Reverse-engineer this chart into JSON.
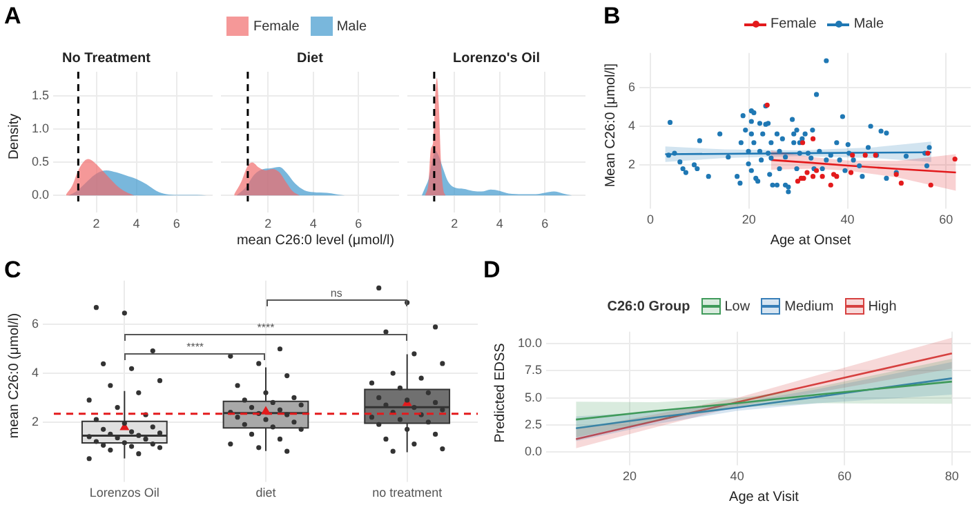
{
  "chart_data": [
    {
      "type": "area",
      "title": "No Treatment",
      "ylabel": "Density",
      "annotations": [
        "A"
      ],
      "legend": "top",
      "grid": true,
      "xlim": [
        0.4,
        7.8
      ],
      "xticks": [
        2,
        4,
        6
      ],
      "ylim": [
        -0.09,
        1.87
      ],
      "yticks": [
        {
          "value": 0,
          "label": "0.0"
        },
        {
          "value": 0.5,
          "label": "0.5"
        },
        {
          "value": 1,
          "label": "1.0"
        },
        {
          "value": 1.5,
          "label": "1.5"
        }
      ],
      "ref_lines": [
        {
          "axis": "x",
          "value": 1.1,
          "color": "#000000",
          "line_style": "dashed"
        }
      ],
      "series": [
        {
          "name": "Female",
          "color": "#f06a6a",
          "x": [
            0.5,
            0.8,
            1.1,
            1.4,
            1.6,
            1.9,
            2.3,
            2.7,
            3.1,
            3.5,
            3.9
          ],
          "values": [
            0.02,
            0.15,
            0.38,
            0.52,
            0.55,
            0.5,
            0.38,
            0.25,
            0.13,
            0.05,
            0
          ]
        },
        {
          "name": "Male",
          "color": "#3d97cc",
          "x": [
            0.6,
            1,
            1.5,
            2,
            2.5,
            3,
            3.5,
            4,
            4.5,
            5,
            5.5,
            6,
            7,
            7.5
          ],
          "values": [
            0,
            0.06,
            0.2,
            0.33,
            0.38,
            0.35,
            0.3,
            0.25,
            0.17,
            0.07,
            0.02,
            0.01,
            0.01,
            0
          ]
        }
      ]
    },
    {
      "type": "area",
      "title": "Diet",
      "xlabel": "mean C26:0 level (μmol/l)",
      "tick_labels": "x",
      "grid": true,
      "xlim": [
        0.4,
        7.8
      ],
      "xticks": [
        2,
        4,
        6
      ],
      "ylim": [
        -0.09,
        1.87
      ],
      "yticks": [
        0,
        0.5,
        1,
        1.5
      ],
      "ref_lines": [
        {
          "axis": "x",
          "value": 1.1,
          "color": "#000000",
          "line_style": "dashed"
        }
      ],
      "series": [
        {
          "color": "#f06a6a",
          "x": [
            0.5,
            0.8,
            1.1,
            1.3,
            1.6,
            1.9,
            2.2,
            2.5,
            2.8,
            3.1,
            3.4
          ],
          "values": [
            0.02,
            0.2,
            0.45,
            0.5,
            0.42,
            0.38,
            0.4,
            0.35,
            0.2,
            0.06,
            0
          ]
        },
        {
          "color": "#3d97cc",
          "x": [
            0.6,
            1,
            1.4,
            1.8,
            2.1,
            2.5,
            2.8,
            3.2,
            3.6,
            4,
            4.6,
            5,
            5.4
          ],
          "values": [
            0,
            0.12,
            0.32,
            0.4,
            0.41,
            0.43,
            0.35,
            0.18,
            0.08,
            0.05,
            0.04,
            0.02,
            0
          ]
        }
      ]
    },
    {
      "type": "area",
      "title": "Lorenzo's Oil",
      "tick_labels": "x",
      "grid": true,
      "xlim": [
        0.4,
        7.8
      ],
      "xticks": [
        2,
        4,
        6
      ],
      "ylim": [
        -0.09,
        1.87
      ],
      "yticks": [
        0,
        0.5,
        1,
        1.5
      ],
      "ref_lines": [
        {
          "axis": "x",
          "value": 1.1,
          "color": "#000000",
          "line_style": "dashed"
        }
      ],
      "series": [
        {
          "color": "#f06a6a",
          "x": [
            0.7,
            0.85,
            0.95,
            1.05,
            1.15,
            1.22,
            1.3,
            1.4,
            1.5,
            1.6
          ],
          "values": [
            0,
            0.2,
            0.7,
            0.8,
            1.5,
            1.78,
            1.4,
            0.5,
            0.1,
            0
          ]
        },
        {
          "color": "#3d97cc",
          "x": [
            0.55,
            0.7,
            0.85,
            1,
            1.15,
            1.3,
            1.5,
            1.7,
            2,
            2.4,
            2.8,
            3.2,
            3.6,
            4,
            4.4,
            5,
            5.6,
            6,
            6.4,
            6.8,
            7.2
          ],
          "values": [
            0,
            0.12,
            0.25,
            0.5,
            0.68,
            0.6,
            0.4,
            0.22,
            0.12,
            0.1,
            0.07,
            0.06,
            0.09,
            0.07,
            0.03,
            0.02,
            0.02,
            0.04,
            0.06,
            0.03,
            0
          ]
        }
      ]
    },
    {
      "type": "scatter",
      "xlabel": "Age at Onset",
      "ylabel": "Mean C26:0 [μmol/l]",
      "annotations": [
        "B"
      ],
      "legend": "top",
      "grid": true,
      "xlim": [
        0,
        65
      ],
      "xticks": [
        0,
        20,
        40,
        60
      ],
      "ylim": [
        0.3,
        7.8
      ],
      "yticks": [
        2,
        4,
        6
      ],
      "series": [
        {
          "name": "Female",
          "color": "#e31a1c",
          "x": [
            23.7,
            30.9,
            33,
            29.9,
            30.6,
            31.1,
            31.8,
            33,
            34.9,
            36.6,
            37.2,
            37.8,
            40.7,
            41,
            43.6,
            45.7,
            49.9,
            50.9,
            56.3,
            56.9,
            61.8,
            33.7
          ],
          "values": [
            5.1,
            3.15,
            3.35,
            1.15,
            1.3,
            1.3,
            1.6,
            1.4,
            1.4,
            0.95,
            1.5,
            1.4,
            1.6,
            2.5,
            2.5,
            2.5,
            1.5,
            1.05,
            2.6,
            0.95,
            2.3,
            1.7
          ]
        },
        {
          "name": "Male",
          "color": "#1f78b4",
          "x": [
            4,
            3.7,
            4.9,
            6,
            6.6,
            7.2,
            8.9,
            9.5,
            10,
            11.8,
            14.1,
            15.8,
            17.6,
            18.2,
            18.4,
            18.8,
            19.3,
            19.9,
            19.9,
            20.5,
            20.5,
            20.5,
            20.5,
            21,
            21,
            21.4,
            21.8,
            22.2,
            22.2,
            22.5,
            22.8,
            23.4,
            23.4,
            23.9,
            23.9,
            24.2,
            24.5,
            24.5,
            24.8,
            25.7,
            25.7,
            26.2,
            26.2,
            26.8,
            27.4,
            27.4,
            28,
            28,
            28.8,
            29.1,
            29.1,
            29.7,
            29.7,
            30.3,
            30.3,
            30.8,
            31.4,
            32,
            32.6,
            32.9,
            33.2,
            33.7,
            34.3,
            34.9,
            35.7,
            35.7,
            36.6,
            37.8,
            38.4,
            39,
            39.5,
            40.1,
            40.3,
            41.2,
            42.4,
            43,
            44.2,
            44.7,
            45.9,
            46.8,
            47.9,
            47.9,
            49.9,
            51.9,
            56.1,
            56.6,
            55.7
          ],
          "values": [
            4.2,
            2.5,
            2.6,
            2.15,
            1.8,
            1.6,
            2,
            1.8,
            3.25,
            1.4,
            3.6,
            2.4,
            1.4,
            1.05,
            3.15,
            4.55,
            3.8,
            2.7,
            2.05,
            4.8,
            4.25,
            3.6,
            1.7,
            4.7,
            3.15,
            1.3,
            1.15,
            4.15,
            2.7,
            2.25,
            3.6,
            4.1,
            5.05,
            2.6,
            4.15,
            1.5,
            2.35,
            3.15,
            0.95,
            0.95,
            3.6,
            2.7,
            1.8,
            3.35,
            2.4,
            0.95,
            0.85,
            0.6,
            4.35,
            3.6,
            3.15,
            3.8,
            1.8,
            2.6,
            3.15,
            3.35,
            3.6,
            2.6,
            2.35,
            3.8,
            1.8,
            5.65,
            2.7,
            1.8,
            7.4,
            2.25,
            2.5,
            3.15,
            2.25,
            4.5,
            1.7,
            3.05,
            2.6,
            2.25,
            1.95,
            1.4,
            2.9,
            4,
            2.5,
            3.75,
            3.65,
            1.3,
            1.6,
            2.45,
            1.95,
            2.9,
            2.6
          ]
        },
        {
          "type": "line",
          "color": "#e31a1c",
          "x": [
            24.5,
            33,
            40,
            50,
            62
          ],
          "values": [
            2.25,
            2.1,
            1.96,
            1.79,
            1.6
          ],
          "lower": [
            1.75,
            1.8,
            1.7,
            1.35,
            0.65
          ],
          "upper": [
            2.75,
            2.4,
            2.22,
            2.2,
            2.55
          ]
        },
        {
          "type": "line",
          "color": "#1f78b4",
          "x": [
            3,
            15,
            30,
            45,
            57
          ],
          "values": [
            2.55,
            2.57,
            2.6,
            2.63,
            2.65
          ],
          "lower": [
            2.15,
            2.35,
            2.45,
            2.35,
            2.15
          ],
          "upper": [
            2.95,
            2.8,
            2.75,
            2.9,
            3.2
          ]
        }
      ]
    },
    {
      "type": "box",
      "ylabel": "mean C26:0 (μmol/l)",
      "annotations": [
        "C",
        "****",
        "****",
        "ns"
      ],
      "grid": true,
      "categories": [
        "Lorenzos Oil",
        "diet",
        "no treatment"
      ],
      "colors": [
        "#e0e0e0",
        "#a8a8a8",
        "#707070"
      ],
      "ylim": [
        0,
        7.8
      ],
      "yticks": [
        2,
        4,
        6
      ],
      "boxes": [
        {
          "low": 0.51,
          "q1": 1.14,
          "median": 1.44,
          "q3": 2.03,
          "high": 3.27,
          "mean": 1.81
        },
        {
          "low": 0.81,
          "q1": 1.76,
          "median": 2.37,
          "q3": 2.85,
          "high": 4.24,
          "mean": 2.46
        },
        {
          "low": 0.76,
          "q1": 1.95,
          "median": 2.61,
          "q3": 3.34,
          "high": 4.78,
          "mean": 2.8
        }
      ],
      "ref_lines": [
        {
          "axis": "y",
          "value": 2.34,
          "color": "#e31a1c",
          "line_style": "dashed"
        }
      ],
      "series": [
        {
          "type": "scatter",
          "color": "#333333",
          "x": [
            "Lorenzos Oil",
            "Lorenzos Oil",
            "Lorenzos Oil",
            "Lorenzos Oil",
            "Lorenzos Oil",
            "Lorenzos Oil",
            "Lorenzos Oil",
            "Lorenzos Oil",
            "Lorenzos Oil",
            "Lorenzos Oil",
            "Lorenzos Oil",
            "Lorenzos Oil",
            "Lorenzos Oil",
            "Lorenzos Oil",
            "Lorenzos Oil",
            "Lorenzos Oil",
            "Lorenzos Oil",
            "Lorenzos Oil",
            "Lorenzos Oil",
            "Lorenzos Oil",
            "Lorenzos Oil",
            "Lorenzos Oil",
            "Lorenzos Oil",
            "Lorenzos Oil",
            "Lorenzos Oil",
            "Lorenzos Oil",
            "Lorenzos Oil",
            "Lorenzos Oil",
            "Lorenzos Oil",
            "Lorenzos Oil",
            "Lorenzos Oil",
            "diet",
            "diet",
            "diet",
            "diet",
            "diet",
            "diet",
            "diet",
            "diet",
            "diet",
            "diet",
            "diet",
            "diet",
            "diet",
            "diet",
            "diet",
            "diet",
            "diet",
            "diet",
            "diet",
            "diet",
            "diet",
            "diet",
            "diet",
            "diet",
            "diet",
            "diet",
            "no treatment",
            "no treatment",
            "no treatment",
            "no treatment",
            "no treatment",
            "no treatment",
            "no treatment",
            "no treatment",
            "no treatment",
            "no treatment",
            "no treatment",
            "no treatment",
            "no treatment",
            "no treatment",
            "no treatment",
            "no treatment",
            "no treatment",
            "no treatment",
            "no treatment",
            "no treatment",
            "no treatment",
            "no treatment",
            "no treatment",
            "no treatment",
            "no treatment",
            "no treatment",
            "no treatment",
            "no treatment",
            "no treatment"
          ],
          "values": [
            0.5,
            0.7,
            0.85,
            0.95,
            1,
            1.05,
            1.1,
            1.15,
            1.2,
            1.3,
            1.35,
            1.4,
            1.45,
            1.5,
            1.55,
            1.6,
            1.7,
            1.8,
            1.95,
            2.1,
            2.3,
            2.6,
            2.9,
            3.2,
            3.5,
            3.7,
            4.19,
            4.39,
            4.92,
            6.47,
            6.7,
            0.8,
            0.95,
            1.1,
            1.3,
            1.5,
            1.7,
            1.8,
            1.9,
            2,
            2.1,
            2.2,
            2.3,
            2.35,
            2.4,
            2.5,
            2.6,
            2.7,
            2.8,
            2.9,
            3,
            3.2,
            3.5,
            3.9,
            4.4,
            4.7,
            5,
            0.8,
            0.9,
            1.1,
            1.3,
            1.5,
            1.7,
            1.9,
            2,
            2.1,
            2.2,
            2.3,
            2.4,
            2.5,
            2.6,
            2.7,
            2.8,
            2.9,
            3,
            3.2,
            3.4,
            3.6,
            3.8,
            4,
            4.4,
            4.8,
            5.7,
            5.9,
            6.9,
            7.5
          ]
        }
      ]
    },
    {
      "type": "line",
      "xlabel": "Age at Visit",
      "ylabel": "Predicted EDSS",
      "legend_title": "C26:0 Group",
      "annotations": [
        "D"
      ],
      "legend": "top",
      "grid": true,
      "xlim": [
        6.5,
        83.5
      ],
      "xticks": [
        20,
        40,
        60,
        80
      ],
      "ylim": [
        -0.2,
        11.1
      ],
      "yticks": [
        {
          "value": 0,
          "label": "0.0"
        },
        {
          "value": 2.5,
          "label": "2.5"
        },
        {
          "value": 5,
          "label": "5.0"
        },
        {
          "value": 7.5,
          "label": "7.5"
        },
        {
          "value": 10,
          "label": "10.0"
        }
      ],
      "series": [
        {
          "name": "Low",
          "color": "#3f9a5a",
          "x": [
            10,
            25,
            40,
            55,
            80
          ],
          "values": [
            3,
            3.8,
            4.5,
            5.3,
            6.5
          ],
          "lower": [
            1.35,
            2.9,
            4.1,
            4.5,
            4.45
          ],
          "upper": [
            4.65,
            4.6,
            4.95,
            6,
            8.6
          ]
        },
        {
          "name": "Medium",
          "color": "#377eb8",
          "x": [
            10,
            25,
            40,
            55,
            80
          ],
          "values": [
            2.2,
            3.2,
            4.1,
            5.1,
            6.8
          ],
          "lower": [
            1,
            2.6,
            3.8,
            4.5,
            5.3
          ],
          "upper": [
            3.3,
            3.7,
            4.5,
            5.8,
            8.3
          ]
        },
        {
          "name": "High",
          "color": "#d6403f",
          "x": [
            10,
            25,
            40,
            55,
            80
          ],
          "values": [
            1.2,
            2.9,
            4.6,
            6.3,
            9.1
          ],
          "lower": [
            0.35,
            2.3,
            4.2,
            5.5,
            7.7
          ],
          "upper": [
            2.1,
            3.5,
            5,
            7.1,
            10.55
          ]
        }
      ]
    }
  ]
}
